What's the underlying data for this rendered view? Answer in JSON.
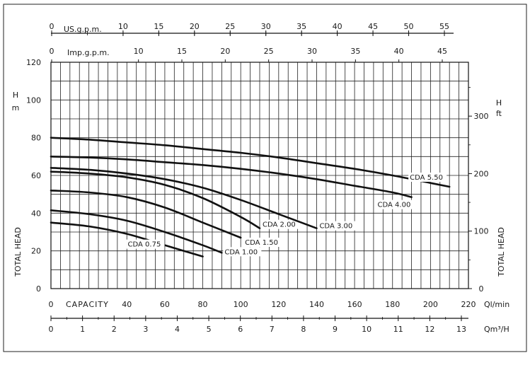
{
  "chart_data": {
    "type": "line",
    "title": "",
    "x": {
      "label": "CAPACITY",
      "unit": "Ql/min",
      "range": [
        0,
        220
      ],
      "ticks": [
        0,
        20,
        40,
        60,
        80,
        100,
        120,
        140,
        160,
        180,
        200,
        220
      ],
      "tick_labels": [
        "0",
        "",
        "40",
        "60",
        "80",
        "100",
        "120",
        "140",
        "160",
        "180",
        "200",
        "220"
      ]
    },
    "y": {
      "label": "TOTAL HEAD",
      "unit": "H m",
      "range": [
        0,
        120
      ],
      "ticks": [
        0,
        20,
        40,
        60,
        80,
        100,
        120
      ],
      "tick_labels": [
        "0",
        "20",
        "40",
        "60",
        "80",
        "100",
        "120"
      ]
    },
    "y_right": {
      "label": "TOTAL HEAD",
      "unit_top": "H",
      "unit_bottom": "ft",
      "ticks": [
        0,
        100,
        200,
        300
      ],
      "tick_labels": [
        "0",
        "100",
        "200",
        "300"
      ]
    },
    "x_top_us": {
      "label": "US.g.p.m.",
      "ticks": [
        0,
        10,
        15,
        20,
        25,
        30,
        35,
        40,
        45,
        50,
        55
      ],
      "tick_labels": [
        "0",
        "10",
        "15",
        "20",
        "25",
        "30",
        "35",
        "40",
        "45",
        "50",
        "55"
      ]
    },
    "x_top_imp": {
      "label": "Imp.g.p.m.",
      "ticks": [
        0,
        10,
        15,
        20,
        25,
        30,
        35,
        40,
        45
      ],
      "tick_labels": [
        "0",
        "10",
        "15",
        "20",
        "25",
        "30",
        "35",
        "40",
        "45"
      ]
    },
    "x_bottom_m3h": {
      "unit": "Qm³/H",
      "ticks": [
        0,
        1,
        2,
        3,
        4,
        5,
        6,
        7,
        8,
        9,
        10,
        11,
        12,
        13
      ],
      "tick_labels": [
        "0",
        "1",
        "2",
        "3",
        "4",
        "5",
        "6",
        "7",
        "8",
        "9",
        "10",
        "11",
        "12",
        "13"
      ]
    },
    "grid": true,
    "series": [
      {
        "name": "CDA 0.75",
        "x": [
          0,
          20,
          40,
          60,
          80
        ],
        "y": [
          35,
          33,
          29,
          23,
          17
        ]
      },
      {
        "name": "CDA 1.00",
        "x": [
          0,
          20,
          40,
          60,
          80,
          90
        ],
        "y": [
          41.5,
          39.5,
          36,
          30,
          23,
          19
        ]
      },
      {
        "name": "CDA 1.50",
        "x": [
          0,
          20,
          40,
          60,
          80,
          100
        ],
        "y": [
          52,
          51,
          48.5,
          43,
          35,
          27
        ]
      },
      {
        "name": "CDA 2.00",
        "x": [
          0,
          20,
          40,
          60,
          80,
          100,
          110
        ],
        "y": [
          62,
          61,
          59,
          55,
          48,
          38,
          32
        ]
      },
      {
        "name": "CDA 3.00",
        "x": [
          0,
          20,
          40,
          60,
          80,
          100,
          120,
          140
        ],
        "y": [
          64,
          63,
          61,
          58,
          53.5,
          47,
          39.5,
          32
        ]
      },
      {
        "name": "CDA 4.00",
        "x": [
          0,
          20,
          40,
          60,
          80,
          100,
          120,
          140,
          160,
          180,
          190
        ],
        "y": [
          70,
          69.5,
          68.5,
          67,
          65.5,
          63.5,
          61,
          58,
          54.5,
          51,
          48.5
        ]
      },
      {
        "name": "CDA 5.50",
        "x": [
          0,
          20,
          40,
          60,
          80,
          100,
          120,
          140,
          160,
          180,
          200,
          210
        ],
        "y": [
          80,
          79,
          77.5,
          76,
          74,
          72,
          69.5,
          66.5,
          63.5,
          60,
          56,
          54
        ]
      }
    ]
  }
}
